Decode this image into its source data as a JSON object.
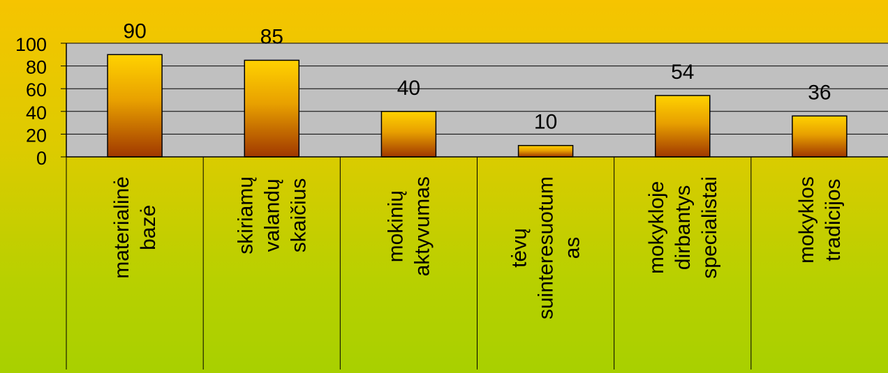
{
  "chart_data": {
    "type": "bar",
    "categories": [
      [
        "materialinė",
        "bazė"
      ],
      [
        "skiriamų",
        "valandų",
        "skaičius"
      ],
      [
        "mokinių",
        "aktyvumas"
      ],
      [
        "tėvų",
        "suinteresuotum",
        "as"
      ],
      [
        "mokykloje",
        "dirbantys",
        "specialistai"
      ],
      [
        "mokyklos",
        "tradicijos"
      ]
    ],
    "values": [
      90,
      85,
      40,
      10,
      54,
      36
    ],
    "data_labels": [
      "90",
      "85",
      "40",
      "10",
      "54",
      "36"
    ],
    "ylim": [
      0,
      100
    ],
    "yticks": [
      "0",
      "20",
      "40",
      "60",
      "80",
      "100"
    ],
    "grid": true,
    "colors": {
      "plot_bg": "#c0c0c0",
      "bar_top": "#ffd200",
      "bar_bottom": "#a03800",
      "gridline": "#000000"
    }
  }
}
